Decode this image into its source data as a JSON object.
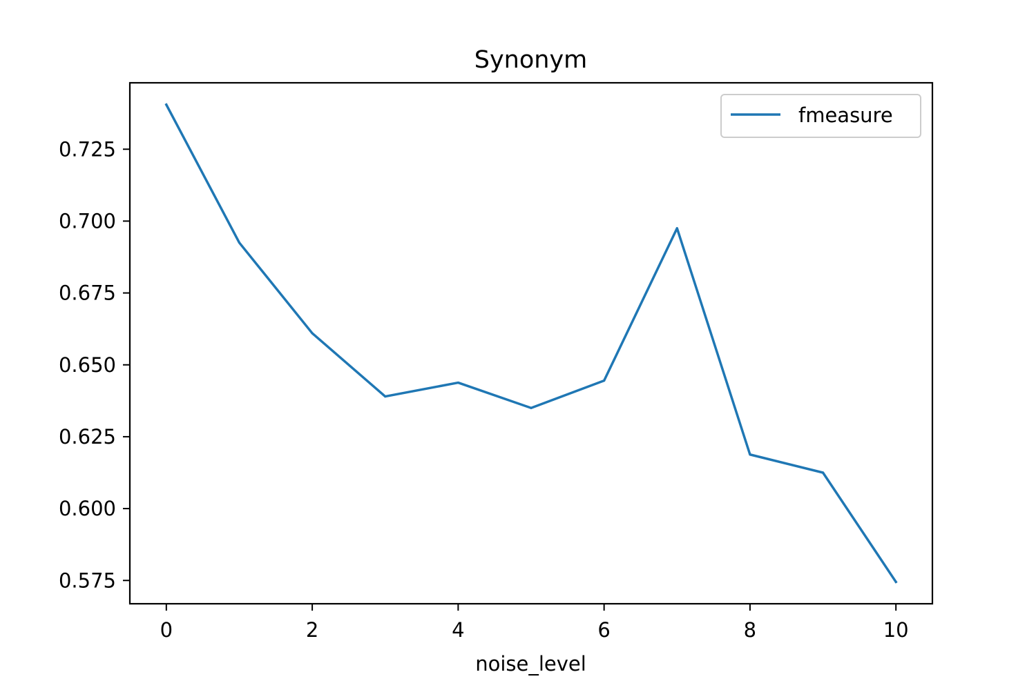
{
  "chart_data": {
    "type": "line",
    "title": "Synonym",
    "xlabel": "noise_level",
    "ylabel": "",
    "x": [
      0,
      1,
      2,
      3,
      4,
      5,
      6,
      7,
      8,
      9,
      10
    ],
    "series": [
      {
        "name": "fmeasure",
        "color": "#1f77b4",
        "values": [
          0.7405,
          0.6925,
          0.661,
          0.639,
          0.6438,
          0.635,
          0.6445,
          0.6975,
          0.6188,
          0.6125,
          0.5745
        ]
      }
    ],
    "xlim": [
      -0.5,
      10.5
    ],
    "ylim": [
      0.5669,
      0.7481
    ],
    "xticks": [
      0,
      2,
      4,
      6,
      8,
      10
    ],
    "xtick_labels": [
      "0",
      "2",
      "4",
      "6",
      "8",
      "10"
    ],
    "yticks": [
      0.575,
      0.6,
      0.625,
      0.65,
      0.675,
      0.7,
      0.725
    ],
    "ytick_labels": [
      "0.575",
      "0.600",
      "0.625",
      "0.650",
      "0.675",
      "0.700",
      "0.725"
    ],
    "grid": false,
    "legend_position": "top-right"
  }
}
